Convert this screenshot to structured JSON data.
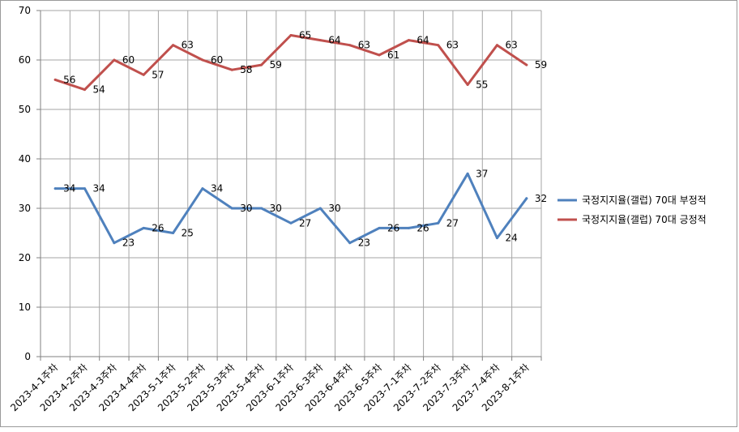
{
  "chart_data": {
    "type": "line",
    "categories": [
      "2023-4-1주차",
      "2023-4-2주차",
      "2023-4-3주차",
      "2023-4-4주차",
      "2023-5-1주차",
      "2023-5-2주차",
      "2023-5-3주차",
      "2023-5-4주차",
      "2023-6-1주차",
      "2023-6-3주차",
      "2023-6-4주차",
      "2023-6-5주차",
      "2023-7-1주차",
      "2023-7-2주차",
      "2023-7-3주차",
      "2023-7-4주차",
      "2023-8-1주차"
    ],
    "series": [
      {
        "name": "국정지지율(갤럽) 70대 부정적",
        "color": "#4F81BD",
        "values": [
          34,
          34,
          23,
          26,
          25,
          34,
          30,
          30,
          27,
          30,
          23,
          26,
          26,
          27,
          37,
          24,
          32
        ]
      },
      {
        "name": "국정지지율(갤럽) 70대 긍정적",
        "color": "#C0504D",
        "values": [
          56,
          54,
          60,
          57,
          63,
          60,
          58,
          59,
          65,
          64,
          63,
          61,
          64,
          63,
          55,
          63,
          59
        ]
      }
    ],
    "ylim": [
      0,
      70
    ],
    "yticks": [
      0,
      10,
      20,
      30,
      40,
      50,
      60,
      70
    ],
    "grid": true,
    "legend": "right",
    "title": "",
    "xlabel": "",
    "ylabel": ""
  }
}
